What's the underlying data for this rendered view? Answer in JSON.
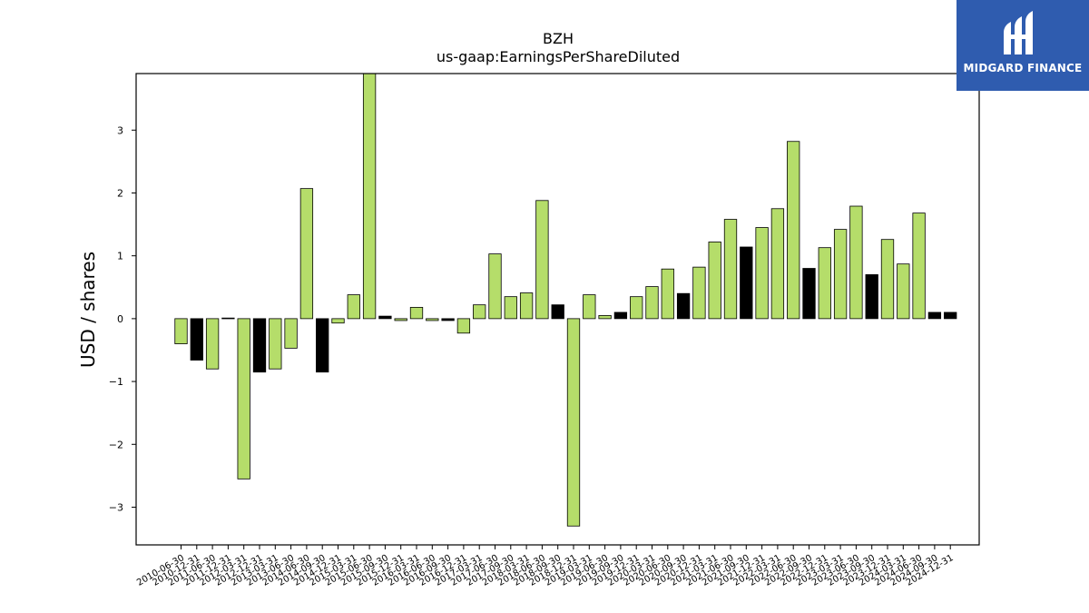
{
  "logo": {
    "text": "MIDGARD FINANCE",
    "background": "#2f5caf"
  },
  "chart_data": {
    "type": "bar",
    "title": "BZH",
    "subtitle": "us-gaap:EarningsPerShareDiluted",
    "ylabel": "USD / shares",
    "xlabel": "",
    "ylim": [
      -3.6,
      3.9
    ],
    "yticks": [
      -3,
      -2,
      -1,
      0,
      1,
      2,
      3
    ],
    "grid": false,
    "colors": {
      "quarterly": "#b5dd6a",
      "annual": "#000000"
    },
    "categories": [
      "2010-06-30",
      "2010-12-31",
      "2011-06-30",
      "2011-12-31",
      "2012-03-31",
      "2012-12-31",
      "2013-03-31",
      "2013-06-30",
      "2014-06-30",
      "2014-09-30",
      "2014-12-31",
      "2015-03-31",
      "2015-06-30",
      "2015-09-30",
      "2015-12-31",
      "2016-03-31",
      "2016-06-30",
      "2016-09-30",
      "2016-12-31",
      "2017-03-31",
      "2017-06-30",
      "2017-09-30",
      "2018-03-31",
      "2018-06-30",
      "2018-09-30",
      "2018-12-31",
      "2019-03-31",
      "2019-06-30",
      "2019-09-30",
      "2019-12-31",
      "2020-03-31",
      "2020-06-30",
      "2020-09-30",
      "2020-12-31",
      "2021-03-31",
      "2021-06-30",
      "2021-09-30",
      "2021-12-31",
      "2022-03-31",
      "2022-06-30",
      "2022-09-30",
      "2022-12-31",
      "2023-03-31",
      "2023-06-30",
      "2023-09-30",
      "2023-12-31",
      "2024-03-31",
      "2024-06-30",
      "2024-09-30",
      "2024-12-31"
    ],
    "values": [
      -0.4,
      -0.66,
      -0.8,
      0.01,
      -2.55,
      -0.85,
      -0.8,
      -0.47,
      2.07,
      -0.85,
      -0.07,
      0.38,
      3.9,
      0.04,
      -0.03,
      0.18,
      -0.03,
      -0.03,
      -0.23,
      0.22,
      1.03,
      0.35,
      0.41,
      1.88,
      0.22,
      -3.3,
      0.38,
      0.05,
      0.1,
      0.35,
      0.51,
      0.79,
      0.4,
      0.82,
      1.22,
      1.58,
      1.14,
      1.45,
      1.75,
      2.82,
      0.8,
      1.13,
      1.42,
      1.79,
      0.7,
      1.26,
      0.87,
      1.68,
      0.1,
      0.1
    ],
    "bar_kind": [
      "q",
      "a",
      "q",
      "a",
      "q",
      "a",
      "q",
      "q",
      "q",
      "a",
      "q",
      "q",
      "q",
      "a",
      "q",
      "q",
      "q",
      "a",
      "q",
      "q",
      "q",
      "q",
      "q",
      "q",
      "a",
      "q",
      "q",
      "q",
      "a",
      "q",
      "q",
      "q",
      "a",
      "q",
      "q",
      "q",
      "a",
      "q",
      "q",
      "q",
      "a",
      "q",
      "q",
      "q",
      "a",
      "q",
      "q",
      "q",
      "a",
      "a"
    ]
  }
}
